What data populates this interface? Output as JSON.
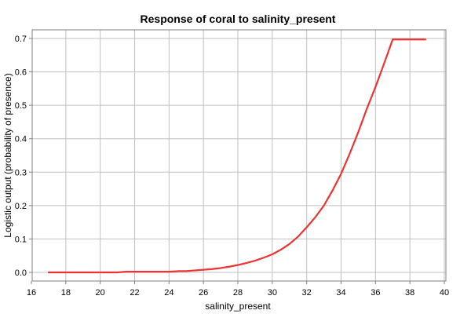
{
  "chart_data": {
    "type": "line",
    "title": "Response of coral to salinity_present",
    "xlabel": "salinity_present",
    "ylabel": "Logistic output (probability of presence)",
    "xlim": [
      16,
      40
    ],
    "ylim": [
      0,
      0.7
    ],
    "x_ticks": [
      16,
      18,
      20,
      22,
      24,
      26,
      28,
      30,
      32,
      34,
      36,
      38,
      40
    ],
    "y_ticks": [
      0.0,
      0.1,
      0.2,
      0.3,
      0.4,
      0.5,
      0.6,
      0.7
    ],
    "x_tick_labels": [
      "16",
      "18",
      "20",
      "22",
      "24",
      "26",
      "28",
      "30",
      "32",
      "34",
      "36",
      "38",
      "40"
    ],
    "y_tick_labels": [
      "0.0",
      "0.1",
      "0.2",
      "0.3",
      "0.4",
      "0.5",
      "0.6",
      "0.7"
    ],
    "grid": true,
    "color": "#ee3333",
    "series": [
      {
        "x": [
          17.0,
          18.0,
          19.0,
          20.0,
          21.0,
          21.5,
          22.0,
          23.0,
          24.0,
          24.6,
          25.0,
          25.8,
          26.5,
          27.0,
          27.5,
          28.0,
          28.5,
          29.0,
          29.5,
          30.0,
          30.5,
          31.0,
          31.5,
          32.0,
          32.5,
          33.0,
          33.5,
          34.0,
          34.5,
          35.0,
          35.5,
          36.0,
          36.5,
          37.0,
          38.0,
          38.9
        ],
        "y": [
          0.0,
          0.0,
          0.0,
          0.0,
          0.0,
          0.002,
          0.002,
          0.002,
          0.002,
          0.004,
          0.004,
          0.007,
          0.01,
          0.013,
          0.017,
          0.022,
          0.028,
          0.035,
          0.044,
          0.054,
          0.068,
          0.085,
          0.107,
          0.135,
          0.165,
          0.2,
          0.245,
          0.295,
          0.355,
          0.42,
          0.49,
          0.555,
          0.625,
          0.697,
          0.697,
          0.697
        ]
      }
    ]
  }
}
